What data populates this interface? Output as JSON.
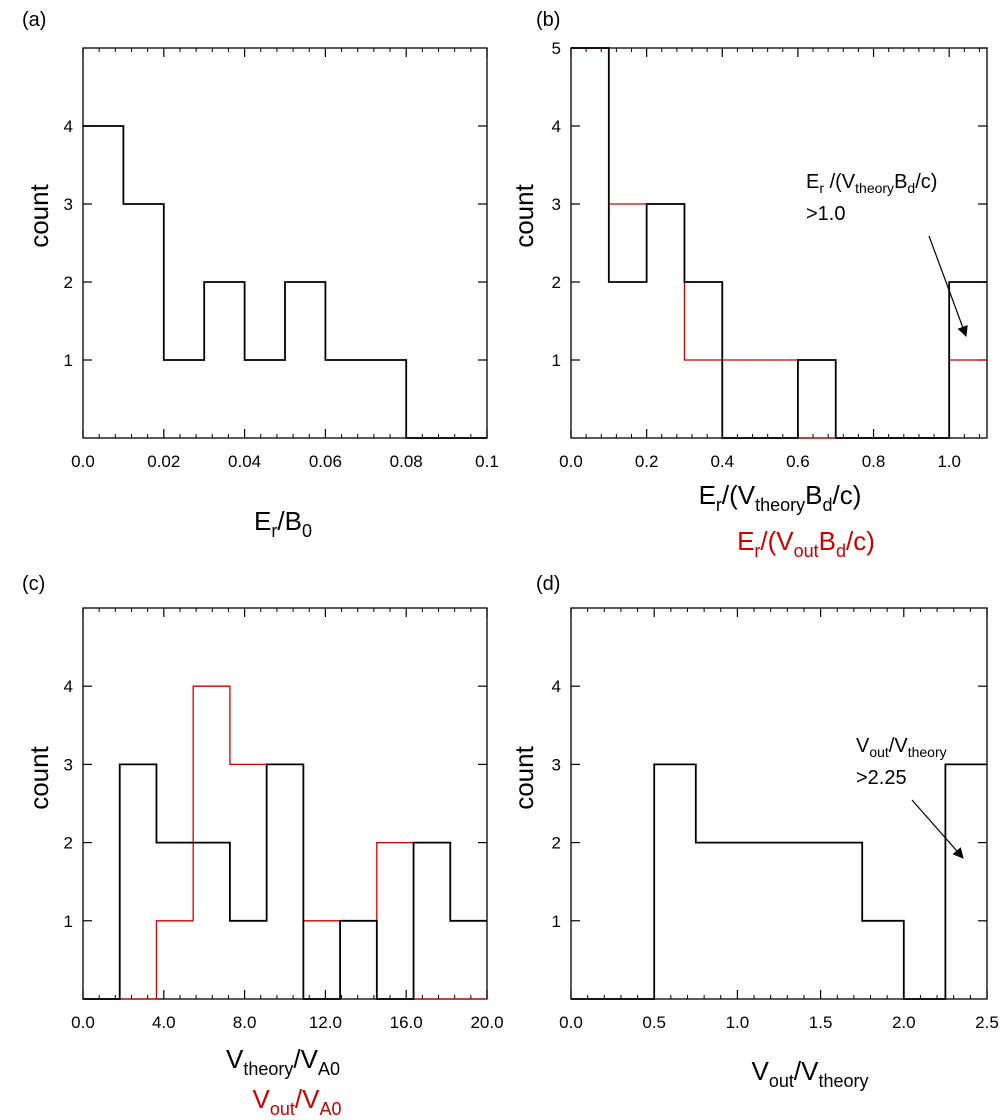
{
  "chart_data": [
    {
      "panel": "(a)",
      "type": "histogram",
      "ylabel": "count",
      "xlabel": {
        "base": "E",
        "sub": "r",
        "mid": "/B",
        "sub2": "0"
      },
      "xlim": [
        0,
        0.1
      ],
      "ylim": [
        0,
        5
      ],
      "xticks": [
        "0.0",
        "0.02",
        "0.04",
        "0.06",
        "0.08",
        "0.1"
      ],
      "yticks": [
        "1",
        "2",
        "3",
        "4"
      ],
      "series": [
        {
          "color": "#000000",
          "edges": [
            0,
            0.01,
            0.02,
            0.03,
            0.04,
            0.05,
            0.06,
            0.07,
            0.08,
            0.09,
            0.1
          ],
          "values": [
            4,
            3,
            1,
            2,
            1,
            2,
            1,
            1,
            0,
            0
          ]
        }
      ]
    },
    {
      "panel": "(b)",
      "type": "histogram",
      "ylabel": "count",
      "xlabel_black": "E_r/(V_theory B_d/c)",
      "xlabel_red": "E_r/(V_out B_d/c)",
      "xlim": [
        0,
        1.1
      ],
      "ylim": [
        0,
        5
      ],
      "xticks": [
        "0.0",
        "0.2",
        "0.4",
        "0.6",
        "0.8",
        "1.0"
      ],
      "yticks": [
        "1",
        "2",
        "3",
        "4",
        "5"
      ],
      "annotation": {
        "line1_base": "E",
        "line1_sub": "r",
        "line1_mid": " /(V",
        "line1_sub2": "theory",
        "line1_mid2": "B",
        "line1_sub3": "d",
        "line1_end": "/c)",
        "line2": ">1.0"
      },
      "series": [
        {
          "color": "#000000",
          "edges": [
            0,
            0.1,
            0.2,
            0.3,
            0.4,
            0.5,
            0.6,
            0.7,
            0.8,
            0.9,
            1.0,
            1.1
          ],
          "values": [
            5,
            2,
            3,
            2,
            0,
            0,
            1,
            0,
            0,
            0,
            2
          ]
        },
        {
          "color": "#cc0000",
          "edges": [
            0,
            0.1,
            0.2,
            0.3,
            0.4,
            0.5,
            0.6,
            0.7,
            0.8,
            0.9,
            1.0,
            1.1
          ],
          "values": [
            5,
            3,
            3,
            1,
            1,
            1,
            0,
            0,
            0,
            0,
            1
          ]
        }
      ]
    },
    {
      "panel": "(c)",
      "type": "histogram",
      "ylabel": "count",
      "xlabel_black": "V_theory/V_A0",
      "xlabel_red": "V_out/V_A0",
      "xlim": [
        0,
        22
      ],
      "ylim": [
        0,
        5
      ],
      "xticks": [
        "0.0",
        "4.0",
        "8.0",
        "12.0",
        "16.0",
        "20.0"
      ],
      "yticks": [
        "1",
        "2",
        "3",
        "4"
      ],
      "series": [
        {
          "color": "#000000",
          "edges": [
            0,
            2,
            4,
            6,
            8,
            10,
            12,
            14,
            16,
            18,
            20,
            22
          ],
          "values": [
            0,
            3,
            2,
            2,
            1,
            3,
            0,
            1,
            0,
            2,
            1
          ]
        },
        {
          "color": "#cc0000",
          "edges": [
            0,
            2,
            4,
            6,
            8,
            10,
            12,
            14,
            16,
            18,
            20,
            22
          ],
          "values": [
            0,
            0,
            1,
            4,
            3,
            3,
            1,
            1,
            2,
            0,
            0
          ]
        }
      ]
    },
    {
      "panel": "(d)",
      "type": "histogram",
      "ylabel": "count",
      "xlabel": "V_out/V_theory",
      "xlim": [
        0,
        2.5
      ],
      "ylim": [
        0,
        5
      ],
      "xticks": [
        "0.0",
        "0.5",
        "1.0",
        "1.5",
        "2.0",
        "2.5"
      ],
      "yticks": [
        "1",
        "2",
        "3",
        "4"
      ],
      "annotation": {
        "line1": "V_out/V_theory",
        "line2": ">2.25"
      },
      "series": [
        {
          "color": "#000000",
          "edges": [
            0,
            0.25,
            0.5,
            0.75,
            1.0,
            1.25,
            1.5,
            1.75,
            2.0,
            2.25,
            2.5
          ],
          "values": [
            0,
            0,
            3,
            2,
            2,
            2,
            2,
            1,
            0,
            3
          ]
        }
      ]
    }
  ],
  "text": {
    "a": {
      "panel": "(a)",
      "ylabel": "count",
      "x_E": "E",
      "x_r": "r",
      "x_mid": "/B",
      "x_0": "0"
    },
    "b": {
      "panel": "(b)",
      "ylabel": "count",
      "xb_E": "E",
      "xb_r": "r",
      "xb_open": "/(V",
      "xb_theory": "theory",
      "xb_B": "B",
      "xb_d": "d",
      "xb_close": "/c)",
      "xr_E": "E",
      "xr_r": "r",
      "xr_open": "/(V",
      "xr_out": "out",
      "xr_B": "B",
      "xr_d": "d",
      "xr_close": "/c)",
      "an_E": "E",
      "an_r": "r",
      "an_open": " /(V",
      "an_theory": "theory",
      "an_B": "B",
      "an_d": "d",
      "an_close": "/c)",
      "an_val": ">1.0"
    },
    "c": {
      "panel": "(c)",
      "ylabel": "count",
      "xb_V": "V",
      "xb_theory": "theory",
      "xb_slash": "/V",
      "xb_A0": "A0",
      "xr_V": "V",
      "xr_out": "out",
      "xr_slash": "/V",
      "xr_A0": "A0"
    },
    "d": {
      "panel": "(d)",
      "ylabel": "count",
      "x_V": "V",
      "x_out": "out",
      "x_slash": "/V",
      "x_theory": "theory",
      "an_V": "V",
      "an_out": "out",
      "an_slash": "/V",
      "an_theory": "theory",
      "an_val": ">2.25"
    }
  }
}
